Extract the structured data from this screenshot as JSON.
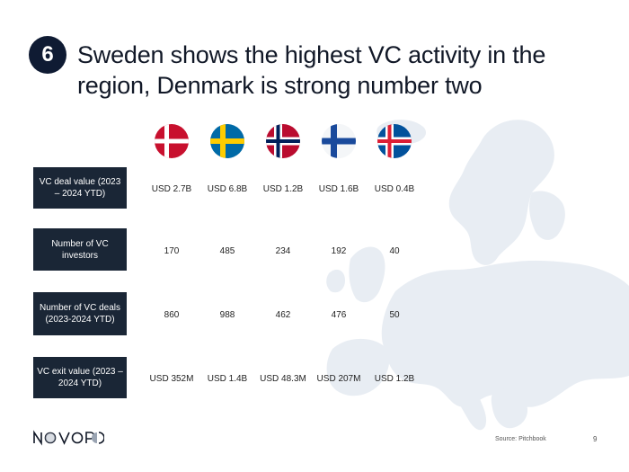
{
  "header": {
    "number": "6",
    "title": "Sweden shows the highest VC activity in the region, Denmark is strong number two"
  },
  "flags": [
    {
      "icon": "denmark-flag-icon"
    },
    {
      "icon": "sweden-flag-icon"
    },
    {
      "icon": "norway-flag-icon"
    },
    {
      "icon": "finland-flag-icon"
    },
    {
      "icon": "iceland-flag-icon"
    }
  ],
  "table": {
    "rows": [
      {
        "label": "VC deal value (2023 – 2024 YTD)",
        "values": [
          "USD 2.7B",
          "USD 6.8B",
          "USD 1.2B",
          "USD 1.6B",
          "USD 0.4B"
        ]
      },
      {
        "label": "Number of VC investors",
        "values": [
          "170",
          "485",
          "234",
          "192",
          "40"
        ]
      },
      {
        "label": "Number of VC deals (2023-2024 YTD)",
        "values": [
          "860",
          "988",
          "462",
          "476",
          "50"
        ]
      },
      {
        "label": "VC exit value (2023 – 2024 YTD)",
        "values": [
          "USD 352M",
          "USD 1.4B",
          "USD 48.3M",
          "USD 207M",
          "USD 1.2B"
        ]
      }
    ]
  },
  "footer": {
    "logo_text": "NOVOPO",
    "source": "Source: Pitchbook",
    "page": "9"
  },
  "colors": {
    "badge": "#0f1b33",
    "label_bg": "#1a2636",
    "map": "#e9eef4"
  }
}
